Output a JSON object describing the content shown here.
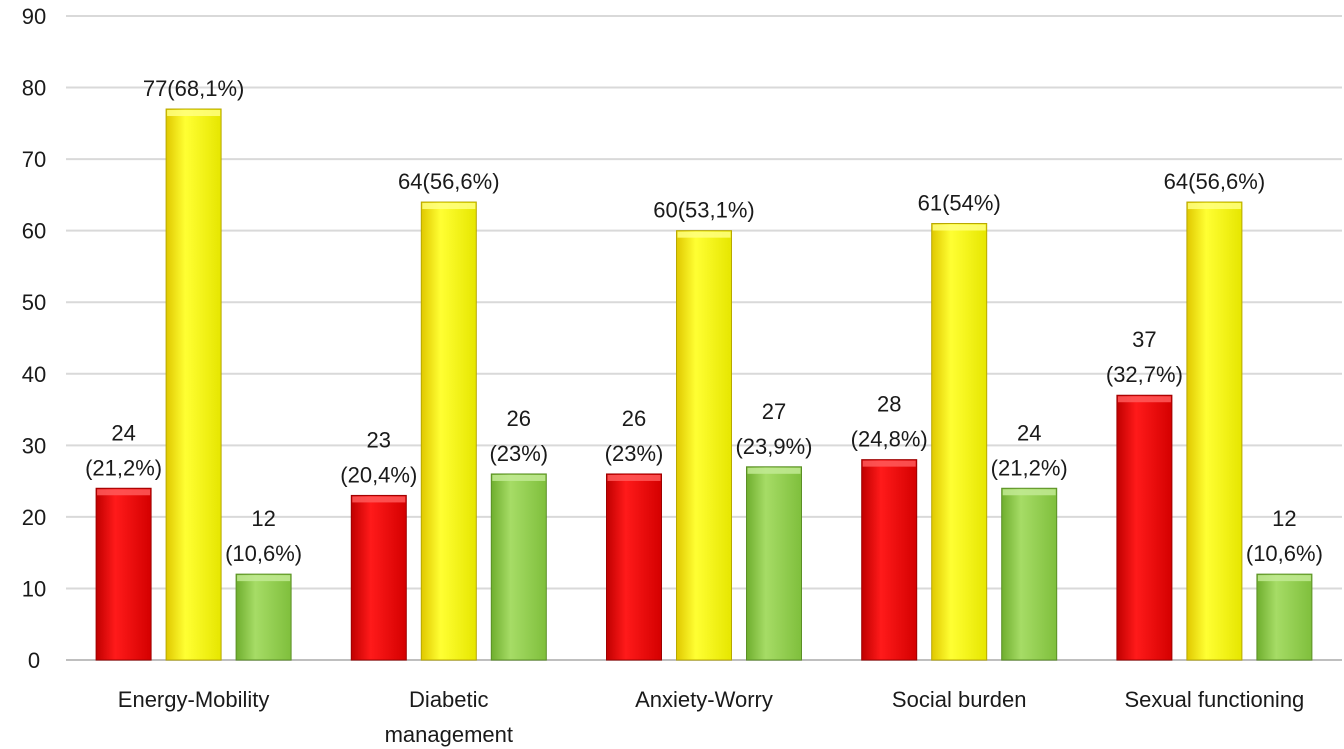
{
  "chart_data": {
    "type": "bar",
    "title": "",
    "xlabel": "",
    "ylabel": "",
    "ylim": [
      0,
      90
    ],
    "yticks": [
      0,
      10,
      20,
      30,
      40,
      50,
      60,
      70,
      80,
      90
    ],
    "grid": true,
    "legend": "none",
    "categories": [
      [
        "Energy-Mobility"
      ],
      [
        "Diabetic",
        "management"
      ],
      [
        "Anxiety-Worry"
      ],
      [
        "Social burden"
      ],
      [
        "Sexual functioning"
      ]
    ],
    "series": [
      {
        "color": "#ff0000",
        "values": [
          24,
          23,
          26,
          28,
          37
        ],
        "labels": [
          [
            "24",
            "(21,2%)"
          ],
          [
            "23",
            "(20,4%)"
          ],
          [
            "26",
            "(23%)"
          ],
          [
            "28",
            "(24,8%)"
          ],
          [
            "37",
            "(32,7%)"
          ]
        ]
      },
      {
        "color": "#ffff00",
        "values": [
          77,
          64,
          60,
          61,
          64
        ],
        "labels": [
          [
            "77(68,1%)"
          ],
          [
            "64(56,6%)"
          ],
          [
            "60(53,1%)"
          ],
          [
            "61(54%)"
          ],
          [
            "64(56,6%)"
          ]
        ]
      },
      {
        "color": "#92d050",
        "values": [
          12,
          26,
          27,
          24,
          12
        ],
        "labels": [
          [
            "12",
            "(10,6%)"
          ],
          [
            "26",
            "(23%)"
          ],
          [
            "27",
            "(23,9%)"
          ],
          [
            "24",
            "(21,2%)"
          ],
          [
            "12",
            "(10,6%)"
          ]
        ]
      }
    ]
  }
}
